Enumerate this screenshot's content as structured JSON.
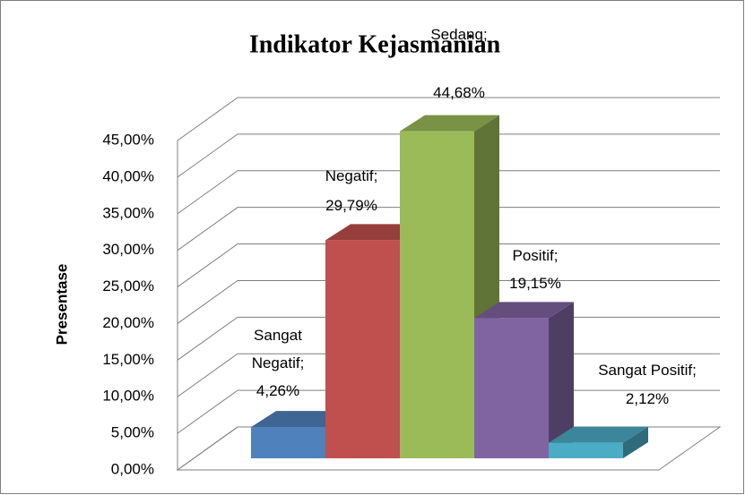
{
  "chart_data": {
    "type": "bar3d",
    "title": "Indikator Kejasmanian",
    "y_label": "Presentase",
    "values": [
      4.26,
      29.79,
      44.68,
      19.15,
      2.12
    ],
    "value_labels": [
      "Sangat Negatif; 4,26%",
      "Negatif; 29,79%",
      "Sedang; 44,68%",
      "Positif; 19,15%",
      "Sangat Positif; 2,12%"
    ],
    "colors": [
      "#4f81bd",
      "#c0504d",
      "#9bbb59",
      "#8064a2",
      "#4bacc6"
    ],
    "ylim": [
      0,
      45
    ],
    "yticks": [
      {
        "value": 0,
        "label": "0,00%"
      },
      {
        "value": 5,
        "label": "5,00%"
      },
      {
        "value": 10,
        "label": "10,00%"
      },
      {
        "value": 15,
        "label": "15,00%"
      },
      {
        "value": 20,
        "label": "20,00%"
      },
      {
        "value": 25,
        "label": "25,00%"
      },
      {
        "value": 30,
        "label": "30,00%"
      },
      {
        "value": 35,
        "label": "35,00%"
      },
      {
        "value": 40,
        "label": "40,00%"
      },
      {
        "value": 45,
        "label": "45,00%"
      }
    ],
    "grid": true
  }
}
